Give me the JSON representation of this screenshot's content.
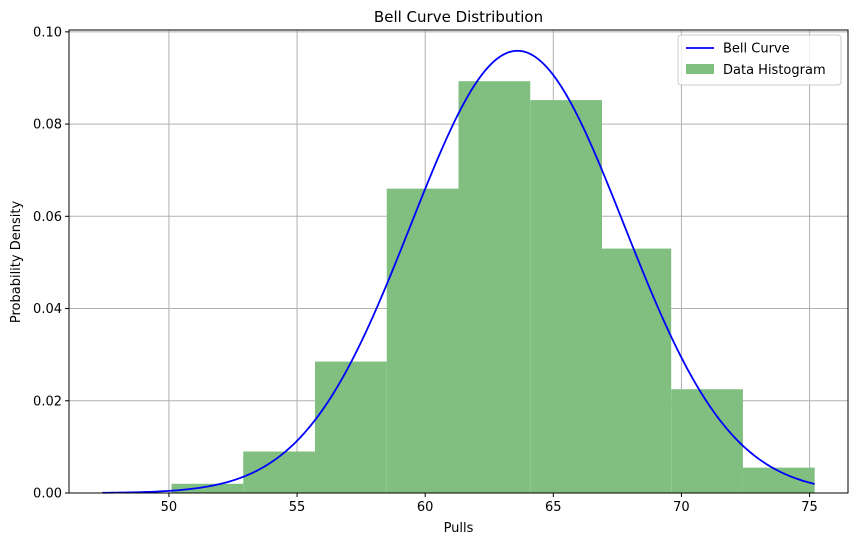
{
  "chart_data": {
    "type": "bar",
    "title": "Bell Curve Distribution",
    "xlabel": "Pulls",
    "ylabel": "Probability Density",
    "xlim": [
      46.1,
      76.5
    ],
    "ylim": [
      0,
      0.1004
    ],
    "x_ticks": [
      50,
      55,
      60,
      65,
      70,
      75
    ],
    "x_tick_labels": [
      "50",
      "55",
      "60",
      "65",
      "70",
      "75"
    ],
    "y_ticks": [
      0.0,
      0.02,
      0.04,
      0.06,
      0.08,
      0.1
    ],
    "y_tick_labels": [
      "0.00",
      "0.02",
      "0.04",
      "0.06",
      "0.08",
      "0.10"
    ],
    "grid": true,
    "legend_position": "top-right",
    "series": [
      {
        "name": "Bell Curve",
        "kind": "line",
        "color": "#0000ff",
        "distribution": "normal",
        "mean": 63.6,
        "std": 4.16,
        "x_range": [
          47.4,
          75.2
        ]
      },
      {
        "name": "Data Histogram",
        "kind": "histogram",
        "color": "#80bf80",
        "bin_edges": [
          50.1,
          52.9,
          55.7,
          58.5,
          61.3,
          64.1,
          66.9,
          69.6,
          72.4,
          75.2
        ],
        "values": [
          0.002,
          0.009,
          0.0285,
          0.066,
          0.0893,
          0.0852,
          0.053,
          0.0225,
          0.0055
        ]
      }
    ],
    "legend": [
      "Bell Curve",
      "Data Histogram"
    ]
  }
}
